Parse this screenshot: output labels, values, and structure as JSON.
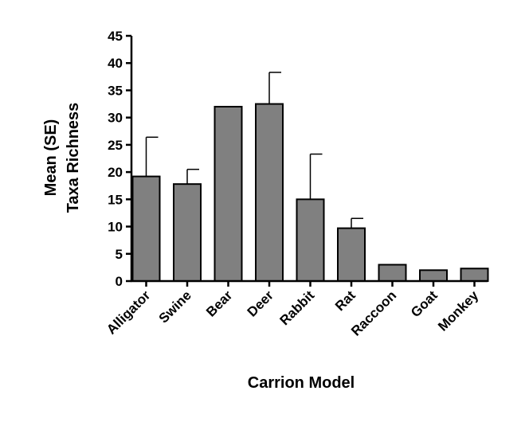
{
  "chart_data": {
    "type": "bar",
    "categories": [
      "Alligator",
      "Swine",
      "Bear",
      "Deer",
      "Rabbit",
      "Rat",
      "Raccoon",
      "Goat",
      "Monkey"
    ],
    "values": [
      19.2,
      17.8,
      32.0,
      32.5,
      15.0,
      9.7,
      3.0,
      2.0,
      2.3
    ],
    "errors": [
      7.2,
      2.7,
      null,
      5.8,
      8.3,
      1.8,
      null,
      null,
      null
    ],
    "title": "",
    "xlabel": "Carrion Model",
    "ylabel_line1": "Mean (SE)",
    "ylabel_line2": "Taxa Richness",
    "ylim": [
      0,
      45
    ],
    "yticks": [
      "0",
      "5",
      "10",
      "15",
      "20",
      "25",
      "30",
      "35",
      "40",
      "45"
    ],
    "bar_color": "#808080",
    "grid": false,
    "legend": "none"
  }
}
